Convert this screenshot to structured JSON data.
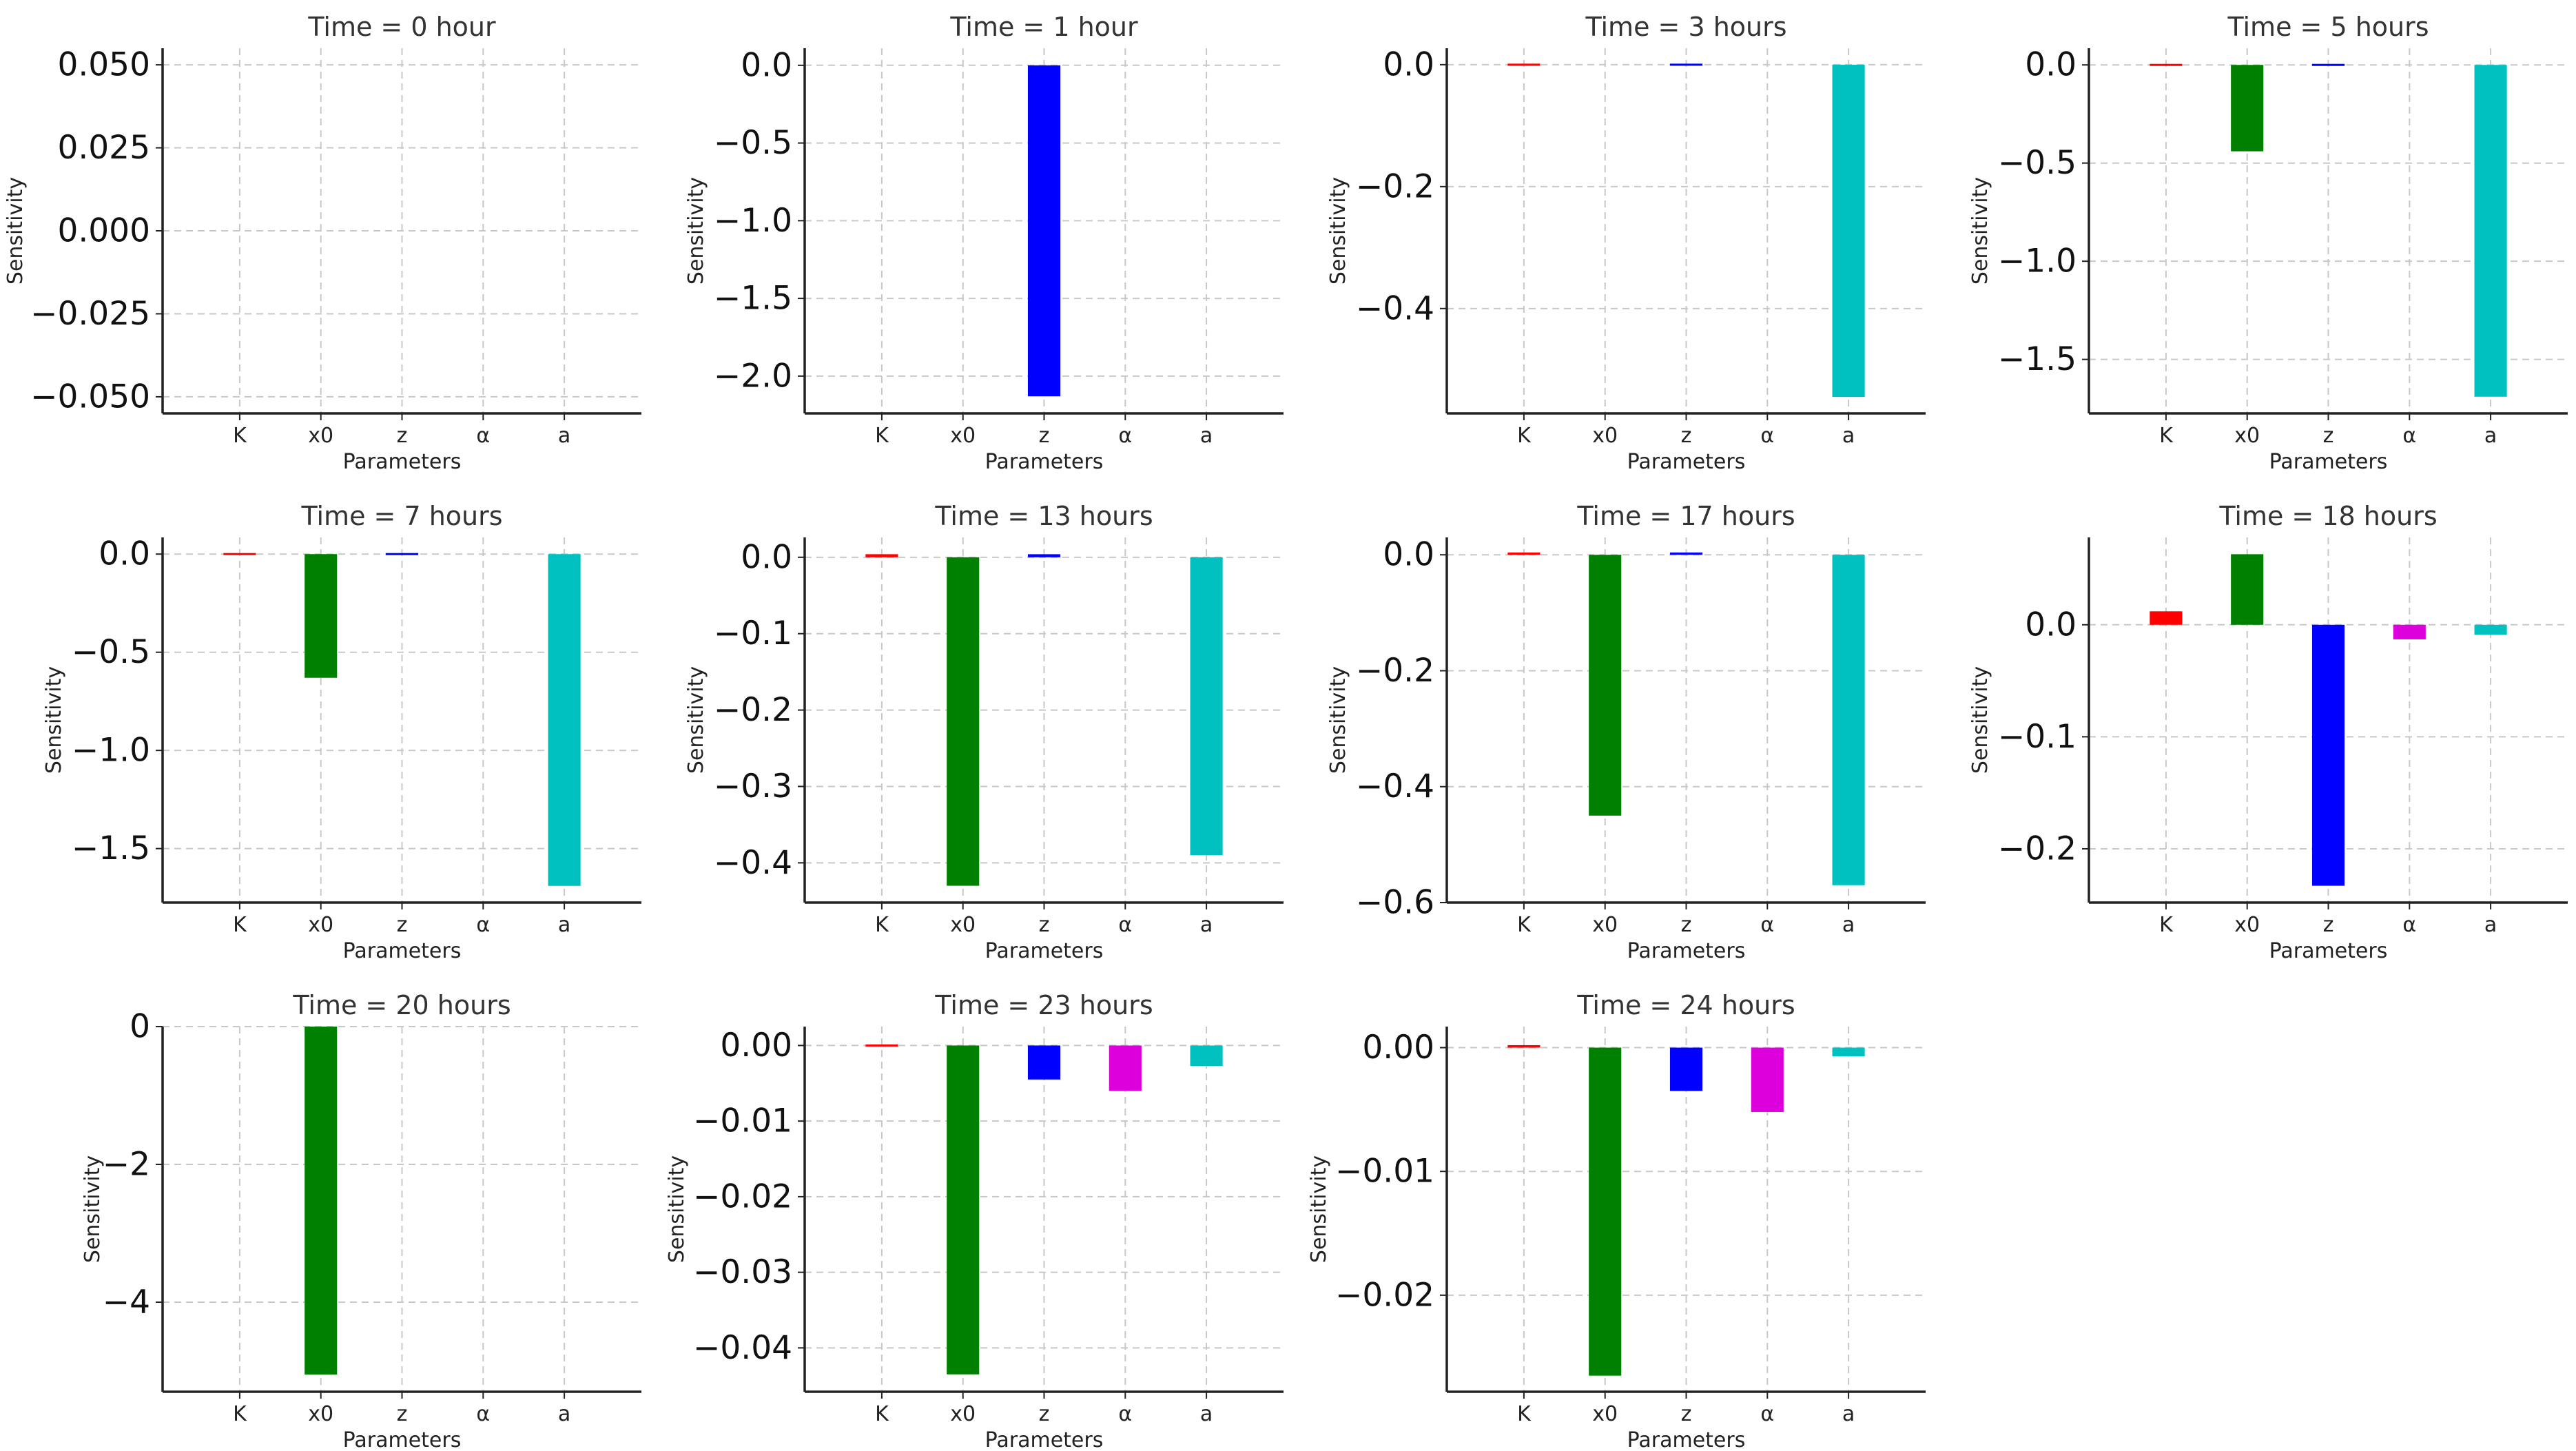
{
  "chart_data": [
    {
      "type": "bar",
      "title": "Time = 0 hour",
      "xlabel": "Parameters",
      "ylabel": "Sensitivity",
      "categories": [
        "K",
        "x0",
        "z",
        "α",
        "a"
      ],
      "colors": [
        "#ff0000",
        "#008000",
        "#0000ff",
        "#dd00dd",
        "#00c0c0"
      ],
      "values": [
        0,
        0,
        0,
        0,
        0
      ],
      "ylim": [
        -0.055,
        0.055
      ],
      "yticks": [
        0.05,
        0.025,
        0,
        -0.025,
        -0.05
      ],
      "ytick_labels": [
        "0.050",
        "0.025",
        "0.000",
        "−0.025",
        "−0.050"
      ]
    },
    {
      "type": "bar",
      "title": "Time = 1 hour",
      "xlabel": "Parameters",
      "ylabel": "Sensitivity",
      "categories": [
        "K",
        "x0",
        "z",
        "α",
        "a"
      ],
      "colors": [
        "#ff0000",
        "#008000",
        "#0000ff",
        "#dd00dd",
        "#00c0c0"
      ],
      "values": [
        0,
        0,
        -2.13,
        0,
        0
      ],
      "ylim": [
        -2.24,
        0.11
      ],
      "yticks": [
        0,
        -0.5,
        -1.0,
        -1.5,
        -2.0
      ],
      "ytick_labels": [
        "0.0",
        "−0.5",
        "−1.0",
        "−1.5",
        "−2.0"
      ]
    },
    {
      "type": "bar",
      "title": "Time = 3 hours",
      "xlabel": "Parameters",
      "ylabel": "Sensitivity",
      "categories": [
        "K",
        "x0",
        "z",
        "α",
        "a"
      ],
      "colors": [
        "#ff0000",
        "#008000",
        "#0000ff",
        "#dd00dd",
        "#00c0c0"
      ],
      "values": [
        0.001,
        0,
        0.001,
        0,
        -0.545
      ],
      "ylim": [
        -0.572,
        0.027
      ],
      "yticks": [
        0,
        -0.2,
        -0.4
      ],
      "ytick_labels": [
        "0.0",
        "−0.2",
        "−0.4"
      ]
    },
    {
      "type": "bar",
      "title": "Time = 5 hours",
      "xlabel": "Parameters",
      "ylabel": "Sensitivity",
      "categories": [
        "K",
        "x0",
        "z",
        "α",
        "a"
      ],
      "colors": [
        "#ff0000",
        "#008000",
        "#0000ff",
        "#dd00dd",
        "#00c0c0"
      ],
      "values": [
        0.005,
        -0.44,
        0.003,
        0,
        -1.69
      ],
      "ylim": [
        -1.775,
        0.085
      ],
      "yticks": [
        0,
        -0.5,
        -1.0,
        -1.5
      ],
      "ytick_labels": [
        "0.0",
        "−0.5",
        "−1.0",
        "−1.5"
      ]
    },
    {
      "type": "bar",
      "title": "Time = 7 hours",
      "xlabel": "Parameters",
      "ylabel": "Sensitivity",
      "categories": [
        "K",
        "x0",
        "z",
        "α",
        "a"
      ],
      "colors": [
        "#ff0000",
        "#008000",
        "#0000ff",
        "#dd00dd",
        "#00c0c0"
      ],
      "values": [
        0.01,
        -0.63,
        0.004,
        0,
        -1.69
      ],
      "ylim": [
        -1.775,
        0.085
      ],
      "yticks": [
        0,
        -0.5,
        -1.0,
        -1.5
      ],
      "ytick_labels": [
        "0.0",
        "−0.5",
        "−1.0",
        "−1.5"
      ]
    },
    {
      "type": "bar",
      "title": "Time = 13 hours",
      "xlabel": "Parameters",
      "ylabel": "Sensitivity",
      "categories": [
        "K",
        "x0",
        "z",
        "α",
        "a"
      ],
      "colors": [
        "#ff0000",
        "#008000",
        "#0000ff",
        "#dd00dd",
        "#00c0c0"
      ],
      "values": [
        0.004,
        -0.43,
        0.004,
        0,
        -0.39
      ],
      "ylim": [
        -0.452,
        0.026
      ],
      "yticks": [
        0,
        -0.1,
        -0.2,
        -0.3,
        -0.4
      ],
      "ytick_labels": [
        "0.0",
        "−0.1",
        "−0.2",
        "−0.3",
        "−0.4"
      ]
    },
    {
      "type": "bar",
      "title": "Time = 17 hours",
      "xlabel": "Parameters",
      "ylabel": "Sensitivity",
      "categories": [
        "K",
        "x0",
        "z",
        "α",
        "a"
      ],
      "colors": [
        "#ff0000",
        "#008000",
        "#0000ff",
        "#dd00dd",
        "#00c0c0"
      ],
      "values": [
        0.004,
        -0.45,
        0.004,
        0,
        -0.57
      ],
      "ylim": [
        -0.6,
        0.03
      ],
      "yticks": [
        0,
        -0.2,
        -0.4,
        -0.6
      ],
      "ytick_labels": [
        "0.0",
        "−0.2",
        "−0.4",
        "−0.6"
      ]
    },
    {
      "type": "bar",
      "title": "Time = 18 hours",
      "xlabel": "Parameters",
      "ylabel": "Sensitivity",
      "categories": [
        "K",
        "x0",
        "z",
        "α",
        "a"
      ],
      "colors": [
        "#ff0000",
        "#008000",
        "#0000ff",
        "#dd00dd",
        "#00c0c0"
      ],
      "values": [
        0.012,
        0.063,
        -0.233,
        -0.013,
        -0.009
      ],
      "ylim": [
        -0.248,
        0.078
      ],
      "yticks": [
        0,
        -0.1,
        -0.2
      ],
      "ytick_labels": [
        "0.0",
        "−0.1",
        "−0.2"
      ]
    },
    {
      "type": "bar",
      "title": "Time = 20 hours",
      "xlabel": "Parameters",
      "ylabel": "Sensitivity",
      "categories": [
        "K",
        "x0",
        "z",
        "α",
        "a"
      ],
      "colors": [
        "#ff0000",
        "#008000",
        "#0000ff",
        "#dd00dd",
        "#00c0c0"
      ],
      "values": [
        0,
        -5.05,
        0,
        0,
        0
      ],
      "ylim": [
        -5.3,
        0
      ],
      "yticks": [
        0,
        -2,
        -4
      ],
      "ytick_labels": [
        "0",
        "−2",
        "−4"
      ]
    },
    {
      "type": "bar",
      "title": "Time = 23 hours",
      "xlabel": "Parameters",
      "ylabel": "Sensitivity",
      "categories": [
        "K",
        "x0",
        "z",
        "α",
        "a"
      ],
      "colors": [
        "#ff0000",
        "#008000",
        "#0000ff",
        "#dd00dd",
        "#00c0c0"
      ],
      "values": [
        0.0002,
        -0.0435,
        -0.0045,
        -0.006,
        -0.0027
      ],
      "ylim": [
        -0.0458,
        0.0025
      ],
      "yticks": [
        0,
        -0.01,
        -0.02,
        -0.03,
        -0.04
      ],
      "ytick_labels": [
        "0.00",
        "−0.01",
        "−0.02",
        "−0.03",
        "−0.04"
      ]
    },
    {
      "type": "bar",
      "title": "Time = 24 hours",
      "xlabel": "Parameters",
      "ylabel": "Sensitivity",
      "categories": [
        "K",
        "x0",
        "z",
        "α",
        "a"
      ],
      "colors": [
        "#ff0000",
        "#008000",
        "#0000ff",
        "#dd00dd",
        "#00c0c0"
      ],
      "values": [
        0.0002,
        -0.0265,
        -0.0035,
        -0.0052,
        -0.0007
      ],
      "ylim": [
        -0.0278,
        0.0017
      ],
      "yticks": [
        0,
        -0.01,
        -0.02
      ],
      "ytick_labels": [
        "0.00",
        "−0.01",
        "−0.02"
      ]
    }
  ]
}
